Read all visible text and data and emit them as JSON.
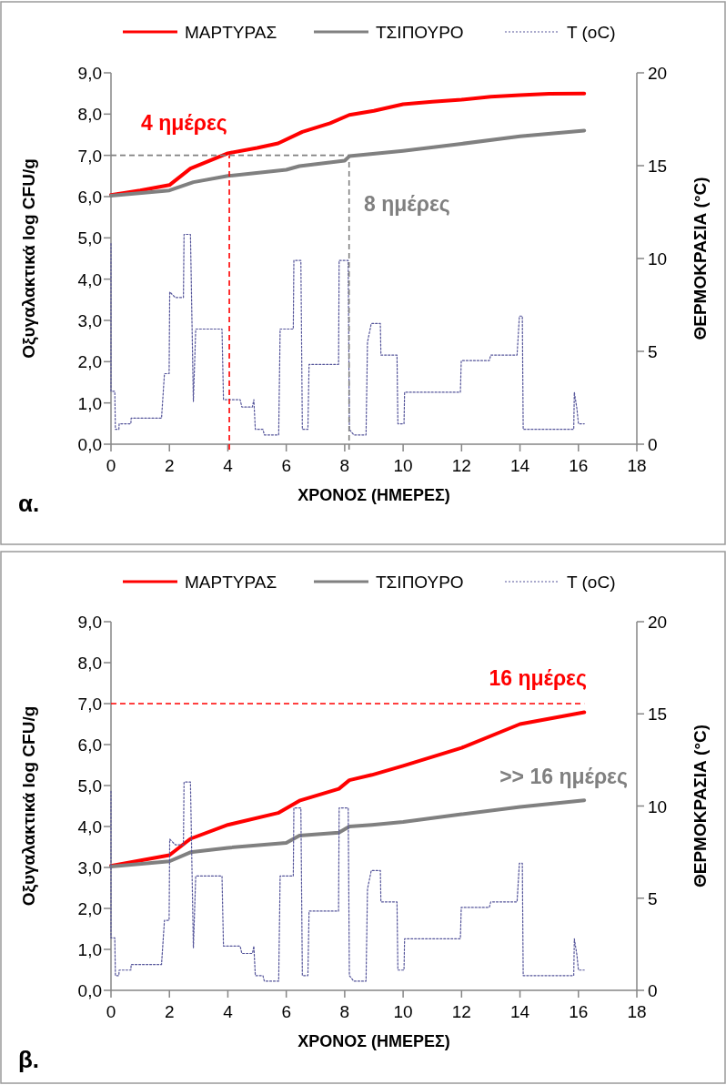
{
  "chart_data": [
    {
      "type": "line",
      "xlabel": "ΧΡΟΝΟΣ (ΗΜΕΡΕΣ)",
      "ylabel": "Οξυγαλακτικά log CFU/g",
      "y2label": "ΘΕΡΜΟΚΡΑΣΙΑ (°C)",
      "legend": "top",
      "marker": "none",
      "xlim": [
        0,
        18
      ],
      "xticks": [
        0,
        2,
        4,
        6,
        8,
        10,
        12,
        14,
        16,
        18
      ],
      "ylim": [
        0,
        9
      ],
      "yticks": [
        {
          "value": 0,
          "label": "0,0"
        },
        {
          "value": 1,
          "label": "1,0"
        },
        {
          "value": 2,
          "label": "2,0"
        },
        {
          "value": 3,
          "label": "3,0"
        },
        {
          "value": 4,
          "label": "4,0"
        },
        {
          "value": 5,
          "label": "5,0"
        },
        {
          "value": 6,
          "label": "6,0"
        },
        {
          "value": 7,
          "label": "7,0"
        },
        {
          "value": 8,
          "label": "8,0"
        },
        {
          "value": 9,
          "label": "9,0"
        }
      ],
      "y2lim": [
        0,
        20
      ],
      "y2ticks": [
        0,
        5,
        10,
        15,
        20
      ],
      "series": [
        {
          "name": "ΜΑΡΤΥΡΑΣ",
          "color": "#ff0000",
          "line_style": "solid",
          "x": [
            0,
            1,
            2,
            2.72,
            4,
            5,
            5.72,
            6.55,
            7.5,
            8.16,
            9,
            10,
            11,
            12,
            13,
            14,
            15,
            16.2
          ],
          "values": [
            6.04,
            6.15,
            6.28,
            6.68,
            7.05,
            7.18,
            7.29,
            7.57,
            7.78,
            7.98,
            8.08,
            8.24,
            8.3,
            8.35,
            8.42,
            8.46,
            8.49,
            8.5
          ]
        },
        {
          "name": "ΤΣΙΠΟΥΡΟ",
          "color": "#808080",
          "line_style": "solid",
          "x": [
            0,
            2,
            2.82,
            4,
            6,
            6.45,
            8,
            8.16,
            10,
            12,
            14,
            16.2
          ],
          "values": [
            6.02,
            6.15,
            6.35,
            6.5,
            6.65,
            6.74,
            6.87,
            6.98,
            7.11,
            7.28,
            7.46,
            7.6
          ]
        },
        {
          "name": "T (oC)",
          "color": "#55559a",
          "line_style": "dotted",
          "axis": "y2",
          "x": [
            0,
            0,
            0.13,
            0.15,
            0.27,
            0.28,
            0.68,
            0.69,
            1.73,
            1.83,
            1.99,
            2.01,
            2.2,
            2.48,
            2.5,
            2.72,
            2.82,
            2.9,
            3.8,
            3.85,
            4.42,
            4.48,
            4.84,
            4.89,
            4.94,
            5.2,
            5.25,
            5.74,
            5.79,
            6.24,
            6.26,
            6.5,
            6.55,
            6.74,
            6.78,
            7.79,
            7.81,
            8.12,
            8.16,
            8.31,
            8.73,
            8.78,
            8.91,
            9.22,
            9.24,
            9.79,
            9.82,
            10.03,
            10.05,
            11.96,
            11.99,
            12.95,
            13.0,
            13.9,
            13.98,
            14.08,
            14.11,
            15.84,
            15.86,
            15.95,
            16.0,
            16.2
          ],
          "values": [
            10.8,
            2.85,
            2.85,
            0.8,
            0.8,
            1.1,
            1.1,
            1.4,
            1.4,
            3.8,
            3.8,
            8.2,
            7.9,
            7.9,
            11.3,
            11.3,
            2.3,
            6.2,
            6.2,
            2.4,
            2.4,
            2.0,
            2.0,
            2.4,
            0.8,
            0.8,
            0.5,
            0.5,
            6.2,
            6.2,
            9.9,
            9.9,
            0.8,
            0.8,
            4.3,
            4.3,
            9.9,
            9.9,
            0.8,
            0.5,
            0.5,
            5.5,
            6.5,
            6.5,
            4.8,
            4.8,
            1.1,
            1.1,
            2.8,
            2.8,
            4.5,
            4.5,
            4.8,
            4.8,
            6.9,
            6.9,
            0.8,
            0.8,
            2.8,
            1.9,
            1.1,
            1.1
          ]
        }
      ],
      "ref_lines": [
        {
          "axis": "y",
          "value": 7,
          "color": "#808080",
          "line_style": "dashed"
        },
        {
          "axis": "x",
          "value": 4.05,
          "color": "#ff0000",
          "line_style": "dashed"
        },
        {
          "axis": "x",
          "value": 8.15,
          "color": "#808080",
          "line_style": "dashed"
        }
      ],
      "annotations": [
        "4 ημέρες",
        "8 ημέρες",
        "α."
      ]
    },
    {
      "type": "line",
      "xlabel": "ΧΡΟΝΟΣ (ΗΜΕΡΕΣ)",
      "ylabel": "Οξυγαλακτικά log CFU/g",
      "y2label": "ΘΕΡΜΟΚΡΑΣΙΑ (°C)",
      "legend": "top",
      "marker": "none",
      "xlim": [
        0,
        18
      ],
      "xticks": [
        0,
        2,
        4,
        6,
        8,
        10,
        12,
        14,
        16,
        18
      ],
      "ylim": [
        0,
        9
      ],
      "yticks": [
        {
          "value": 0,
          "label": "0,0"
        },
        {
          "value": 1,
          "label": "1,0"
        },
        {
          "value": 2,
          "label": "2,0"
        },
        {
          "value": 3,
          "label": "3,0"
        },
        {
          "value": 4,
          "label": "4,0"
        },
        {
          "value": 5,
          "label": "5,0"
        },
        {
          "value": 6,
          "label": "6,0"
        },
        {
          "value": 7,
          "label": "7,0"
        },
        {
          "value": 8,
          "label": "8,0"
        },
        {
          "value": 9,
          "label": "9,0"
        }
      ],
      "y2lim": [
        0,
        20
      ],
      "y2ticks": [
        0,
        5,
        10,
        15,
        20
      ],
      "series": [
        {
          "name": "ΜΑΡΤΥΡΑΣ",
          "color": "#ff0000",
          "line_style": "solid",
          "x": [
            0,
            2,
            2.72,
            4,
            5.72,
            6.45,
            7.8,
            8.16,
            8.93,
            10,
            12,
            14,
            16.2
          ],
          "values": [
            3.04,
            3.3,
            3.7,
            4.04,
            4.33,
            4.63,
            4.92,
            5.13,
            5.26,
            5.48,
            5.92,
            6.5,
            6.79
          ]
        },
        {
          "name": "ΤΣΙΠΟΥΡΟ",
          "color": "#808080",
          "line_style": "solid",
          "x": [
            0,
            2,
            2.72,
            4,
            6,
            6.45,
            7.8,
            8.16,
            8.93,
            10,
            12,
            14,
            16.2
          ],
          "values": [
            3.02,
            3.15,
            3.37,
            3.48,
            3.6,
            3.78,
            3.85,
            4.0,
            4.04,
            4.11,
            4.3,
            4.48,
            4.64
          ]
        },
        {
          "name": "T (oC)",
          "color": "#55559a",
          "line_style": "dotted",
          "axis": "y2",
          "x": [
            0,
            0,
            0.13,
            0.15,
            0.27,
            0.28,
            0.68,
            0.69,
            1.73,
            1.83,
            1.99,
            2.01,
            2.2,
            2.48,
            2.5,
            2.72,
            2.82,
            2.9,
            3.8,
            3.85,
            4.42,
            4.48,
            4.84,
            4.89,
            4.94,
            5.2,
            5.25,
            5.74,
            5.79,
            6.24,
            6.26,
            6.5,
            6.55,
            6.74,
            6.78,
            7.79,
            7.81,
            8.12,
            8.16,
            8.31,
            8.73,
            8.78,
            8.91,
            9.22,
            9.24,
            9.79,
            9.82,
            10.03,
            10.05,
            11.96,
            11.99,
            12.95,
            13.0,
            13.9,
            13.98,
            14.08,
            14.11,
            15.84,
            15.86,
            15.95,
            16.0,
            16.2
          ],
          "values": [
            10.8,
            2.85,
            2.85,
            0.8,
            0.8,
            1.1,
            1.1,
            1.4,
            1.4,
            3.8,
            3.8,
            8.2,
            7.9,
            7.9,
            11.3,
            11.3,
            2.3,
            6.2,
            6.2,
            2.4,
            2.4,
            2.0,
            2.0,
            2.4,
            0.8,
            0.8,
            0.5,
            0.5,
            6.2,
            6.2,
            9.9,
            9.9,
            0.8,
            0.8,
            4.3,
            4.3,
            9.9,
            9.9,
            0.8,
            0.5,
            0.5,
            5.5,
            6.5,
            6.5,
            4.8,
            4.8,
            1.1,
            1.1,
            2.8,
            2.8,
            4.5,
            4.5,
            4.8,
            4.8,
            6.9,
            6.9,
            0.8,
            0.8,
            2.8,
            1.9,
            1.1,
            1.1
          ]
        }
      ],
      "ref_lines": [
        {
          "axis": "y",
          "value": 7,
          "color": "#ff0000",
          "line_style": "dashed"
        }
      ],
      "annotations": [
        "16 ημέρες",
        ">> 16 ημέρες",
        "β."
      ]
    }
  ]
}
